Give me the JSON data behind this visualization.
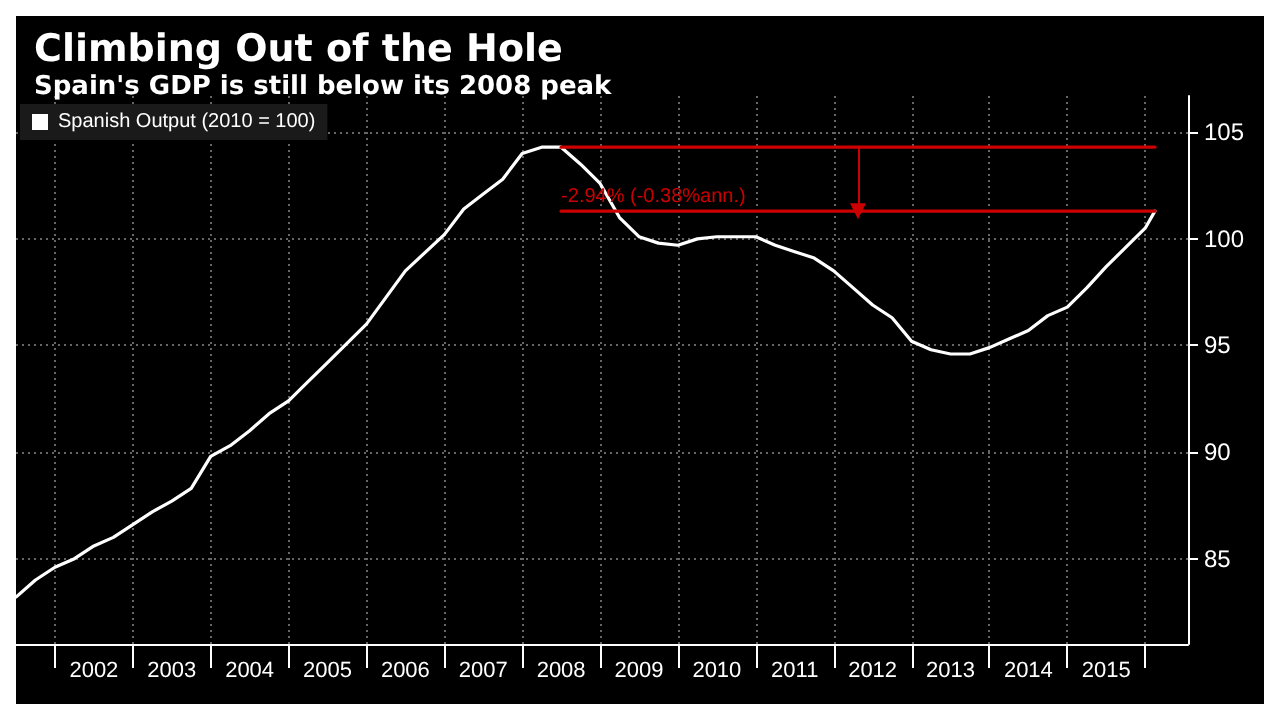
{
  "chart_data": {
    "type": "line",
    "title": "Climbing Out of the Hole",
    "subtitle": "Spain's GDP is still below its 2008 peak",
    "legend": "top left",
    "grid": true,
    "line_style": "solid",
    "marker": "none",
    "xlim": [
      2001.5,
      2016.55
    ],
    "ylim": [
      81,
      106.7
    ],
    "yticks": [
      85,
      90,
      95,
      100,
      105
    ],
    "xticks": [
      {
        "value": 2002,
        "label": null
      },
      {
        "value": 2002.5,
        "label": "2002"
      },
      {
        "value": 2003,
        "label": null
      },
      {
        "value": 2003.5,
        "label": "2003"
      },
      {
        "value": 2004,
        "label": null
      },
      {
        "value": 2004.5,
        "label": "2004"
      },
      {
        "value": 2005,
        "label": null
      },
      {
        "value": 2005.5,
        "label": "2005"
      },
      {
        "value": 2006,
        "label": null
      },
      {
        "value": 2006.5,
        "label": "2006"
      },
      {
        "value": 2007,
        "label": null
      },
      {
        "value": 2007.5,
        "label": "2007"
      },
      {
        "value": 2008,
        "label": null
      },
      {
        "value": 2008.5,
        "label": "2008"
      },
      {
        "value": 2009,
        "label": null
      },
      {
        "value": 2009.5,
        "label": "2009"
      },
      {
        "value": 2010,
        "label": null
      },
      {
        "value": 2010.5,
        "label": "2010"
      },
      {
        "value": 2011,
        "label": null
      },
      {
        "value": 2011.5,
        "label": "2011"
      },
      {
        "value": 2012,
        "label": null
      },
      {
        "value": 2012.5,
        "label": "2012"
      },
      {
        "value": 2013,
        "label": null
      },
      {
        "value": 2013.5,
        "label": "2013"
      },
      {
        "value": 2014,
        "label": null
      },
      {
        "value": 2014.5,
        "label": "2014"
      },
      {
        "value": 2015,
        "label": null
      },
      {
        "value": 2015.5,
        "label": "2015"
      },
      {
        "value": 2016,
        "label": null
      }
    ],
    "annotations": [
      {
        "text": "-2.94% (-0.38%ann.)",
        "x": 2008.5,
        "y": 101.3
      }
    ],
    "series": [
      {
        "name": "Spanish Output (2010 = 100)",
        "color": "#ffffff",
        "x": [
          2001.5,
          2001.75,
          2002,
          2002.25,
          2002.5,
          2002.75,
          2003,
          2003.25,
          2003.5,
          2003.75,
          2004,
          2004.25,
          2004.5,
          2004.75,
          2005,
          2005.25,
          2005.5,
          2005.75,
          2006,
          2006.5,
          2007,
          2007.25,
          2007.5,
          2007.75,
          2008,
          2008.25,
          2008.5,
          2008.75,
          2009,
          2009.25,
          2009.5,
          2009.75,
          2010,
          2010.25,
          2010.5,
          2010.75,
          2011,
          2011.25,
          2011.5,
          2011.75,
          2012,
          2012.25,
          2012.5,
          2012.75,
          2013,
          2013.25,
          2013.5,
          2013.75,
          2014,
          2014.25,
          2014.5,
          2014.75,
          2015,
          2015.25,
          2015.5,
          2015.75,
          2016,
          2016.125
        ],
        "values": [
          83.2,
          84.0,
          84.6,
          85.0,
          85.6,
          86.0,
          86.6,
          87.2,
          87.7,
          88.3,
          89.8,
          90.3,
          91.0,
          91.8,
          92.4,
          93.3,
          94.2,
          95.1,
          96.0,
          98.5,
          100.2,
          101.4,
          102.1,
          102.8,
          104.0,
          104.3,
          104.3,
          103.5,
          102.6,
          101.0,
          100.1,
          99.8,
          99.7,
          100.0,
          100.1,
          100.1,
          100.1,
          99.7,
          99.4,
          99.1,
          98.5,
          97.7,
          96.9,
          96.3,
          95.2,
          94.8,
          94.6,
          94.6,
          94.9,
          95.3,
          95.7,
          96.4,
          96.8,
          97.7,
          98.7,
          99.6,
          100.5,
          101.3
        ]
      },
      {
        "color": "#cc0000",
        "x": [
          2008.5,
          2016.125
        ],
        "values": [
          104.3,
          104.3
        ]
      },
      {
        "color": "#cc0000",
        "x": [
          2008.5,
          2016.125
        ],
        "values": [
          101.3,
          101.3
        ]
      }
    ]
  }
}
